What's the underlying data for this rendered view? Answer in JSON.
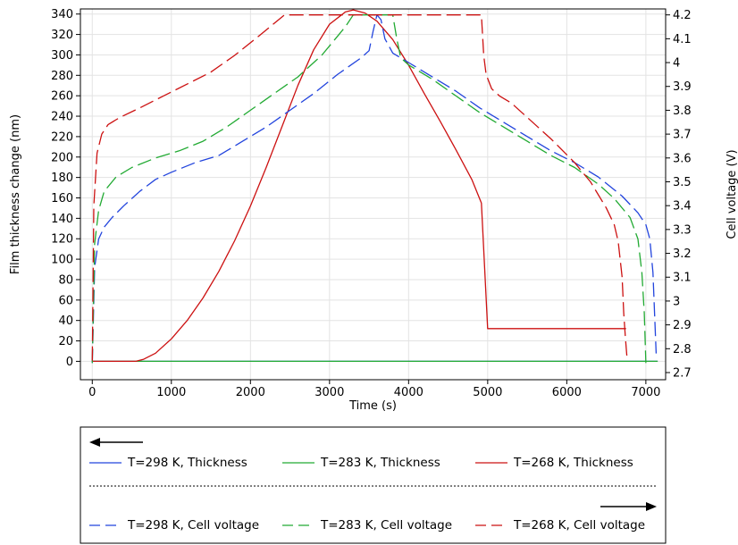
{
  "chart_data": {
    "type": "line",
    "xlabel": "Time (s)",
    "ylabel": "Film thickness change (nm)",
    "y2label": "Cell voltage (V)",
    "xlim": [
      -150,
      7250
    ],
    "ylim": [
      -18,
      345
    ],
    "y2lim": [
      2.67,
      4.225
    ],
    "xticks": [
      0,
      1000,
      2000,
      3000,
      4000,
      5000,
      6000,
      7000
    ],
    "yticks": [
      0,
      20,
      40,
      60,
      80,
      100,
      120,
      140,
      160,
      180,
      200,
      220,
      240,
      260,
      280,
      300,
      320,
      340
    ],
    "y2ticks": [
      2.7,
      2.8,
      2.9,
      3,
      3.1,
      3.2,
      3.3,
      3.4,
      3.5,
      3.6,
      3.7,
      3.8,
      3.9,
      4,
      4.1,
      4.2
    ],
    "y2tick_labels": [
      "2.7",
      "2.8",
      "2.9",
      "3",
      "3.1",
      "3.2",
      "3.3",
      "3.4",
      "3.5",
      "3.6",
      "3.7",
      "3.8",
      "3.9",
      "4",
      "4.1",
      "4.2"
    ],
    "grid": true,
    "legend_placement": "below",
    "series": [
      {
        "name": "T=298 K, Thickness",
        "axis": "left",
        "style": "solid",
        "color": "#2244dd",
        "x": [
          0,
          7000,
          7150
        ],
        "y": [
          0,
          0,
          0
        ]
      },
      {
        "name": "T=283 K, Thickness",
        "axis": "left",
        "style": "solid",
        "color": "#22aa33",
        "x": [
          0,
          7150
        ],
        "y": [
          0,
          0
        ]
      },
      {
        "name": "T=268 K, Thickness",
        "axis": "left",
        "style": "solid",
        "color": "#cc1111",
        "x": [
          0,
          550,
          650,
          800,
          1000,
          1200,
          1400,
          1600,
          1800,
          2000,
          2200,
          2400,
          2600,
          2800,
          3000,
          3200,
          3300,
          3450,
          3600,
          3800,
          4000,
          4200,
          4400,
          4600,
          4800,
          4920,
          5000,
          5500,
          6000,
          6500,
          6750
        ],
        "y": [
          0,
          0,
          2,
          8,
          22,
          40,
          62,
          88,
          118,
          152,
          190,
          230,
          270,
          305,
          330,
          342,
          344,
          341,
          333,
          315,
          290,
          262,
          235,
          207,
          178,
          155,
          32,
          32,
          32,
          32,
          32
        ]
      },
      {
        "name": "T=298 K, Cell voltage",
        "axis": "right",
        "style": "dashed",
        "color": "#2244dd",
        "x": [
          0,
          30,
          80,
          150,
          250,
          400,
          600,
          800,
          1000,
          1300,
          1600,
          1900,
          2200,
          2500,
          2800,
          3100,
          3400,
          3500,
          3550,
          3600,
          3650,
          3700,
          3800,
          4000,
          4300,
          4600,
          4900,
          5200,
          5500,
          5800,
          6100,
          6400,
          6700,
          6900,
          7000,
          7050,
          7090,
          7110,
          7130
        ],
        "y": [
          2.74,
          3.14,
          3.26,
          3.31,
          3.35,
          3.4,
          3.46,
          3.51,
          3.54,
          3.58,
          3.61,
          3.67,
          3.73,
          3.8,
          3.87,
          3.95,
          4.02,
          4.05,
          4.13,
          4.2,
          4.18,
          4.1,
          4.04,
          4.0,
          3.94,
          3.88,
          3.81,
          3.75,
          3.69,
          3.63,
          3.58,
          3.52,
          3.44,
          3.37,
          3.32,
          3.26,
          3.12,
          2.95,
          2.78
        ]
      },
      {
        "name": "T=283 K, Cell voltage",
        "axis": "right",
        "style": "dashed",
        "color": "#22aa33",
        "x": [
          0,
          30,
          80,
          150,
          300,
          500,
          800,
          1100,
          1400,
          1700,
          2000,
          2300,
          2600,
          2900,
          3200,
          3300,
          3700,
          3800,
          3850,
          3900,
          4000,
          4300,
          4600,
          4900,
          5200,
          5500,
          5800,
          6100,
          6400,
          6600,
          6800,
          6900,
          6950,
          6980,
          7000
        ],
        "y": [
          2.74,
          3.24,
          3.38,
          3.46,
          3.52,
          3.56,
          3.6,
          3.63,
          3.67,
          3.73,
          3.8,
          3.87,
          3.94,
          4.03,
          4.15,
          4.2,
          4.2,
          4.2,
          4.1,
          4.02,
          3.99,
          3.93,
          3.86,
          3.79,
          3.73,
          3.67,
          3.61,
          3.56,
          3.49,
          3.43,
          3.35,
          3.26,
          3.12,
          2.95,
          2.74
        ]
      },
      {
        "name": "T=268 K, Cell voltage",
        "axis": "right",
        "style": "dashed",
        "color": "#cc1111",
        "x": [
          0,
          20,
          60,
          120,
          200,
          350,
          600,
          900,
          1200,
          1500,
          1800,
          2100,
          2430,
          2500,
          4920,
          4950,
          4980,
          5050,
          5150,
          5300,
          5500,
          5800,
          6100,
          6300,
          6500,
          6600,
          6650,
          6700,
          6720,
          6740,
          6760
        ],
        "y": [
          2.75,
          3.4,
          3.62,
          3.7,
          3.74,
          3.77,
          3.81,
          3.86,
          3.91,
          3.96,
          4.03,
          4.11,
          4.2,
          4.2,
          4.2,
          4.03,
          3.95,
          3.89,
          3.86,
          3.83,
          3.77,
          3.68,
          3.58,
          3.5,
          3.39,
          3.32,
          3.25,
          3.1,
          2.95,
          2.85,
          2.77
        ]
      }
    ],
    "legend": {
      "rows": [
        [
          "T=298 K, Thickness",
          "T=283 K, Thickness",
          "T=268 K, Thickness"
        ],
        [
          "T=298 K, Cell voltage",
          "T=283 K, Cell voltage",
          "T=268 K, Cell voltage"
        ]
      ]
    }
  }
}
